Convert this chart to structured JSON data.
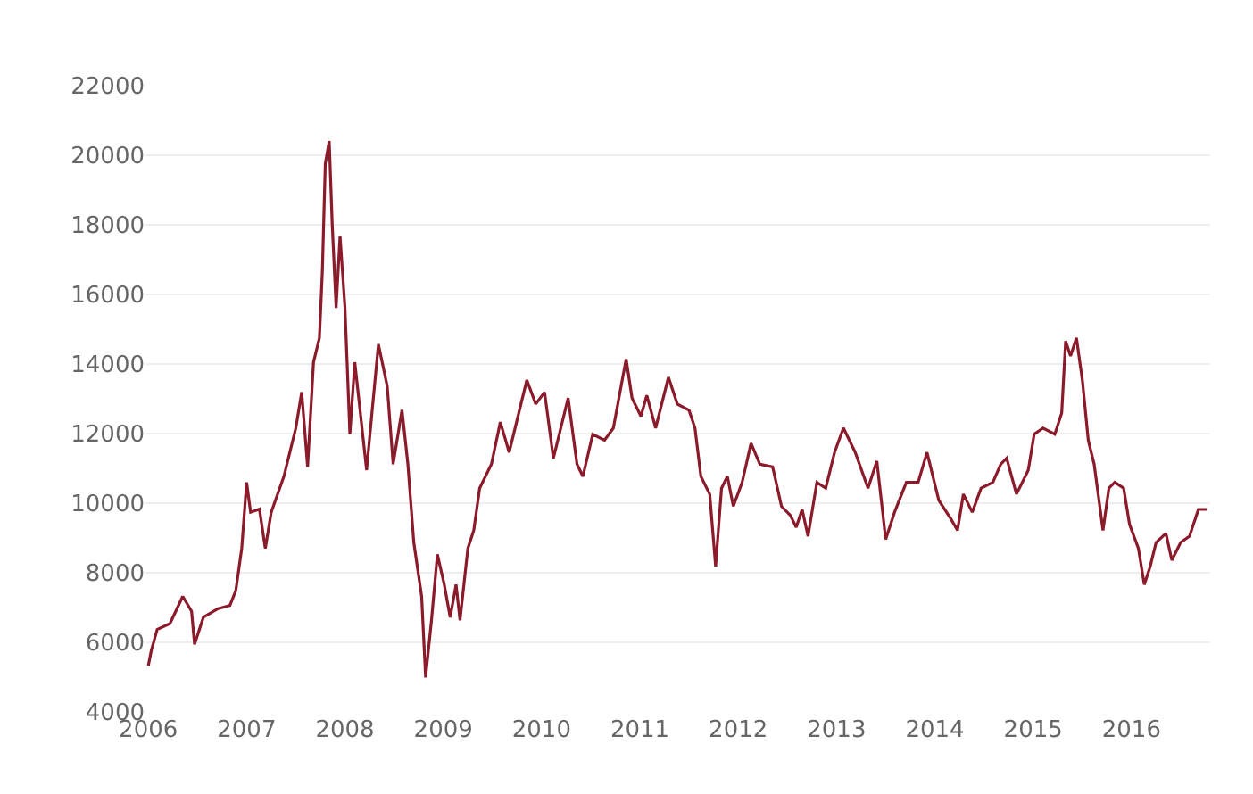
{
  "chart_data": {
    "type": "line",
    "xlim": [
      2005.98,
      2016.8
    ],
    "xticks": [
      2006,
      2007,
      2008,
      2009,
      2010,
      2011,
      2012,
      2013,
      2014,
      2015,
      2016
    ],
    "ylim": [
      4000,
      22000
    ],
    "yticks": [
      4000,
      6000,
      8000,
      10000,
      12000,
      14000,
      16000,
      18000,
      20000,
      22000
    ],
    "grid": "y",
    "marker": "none",
    "line_style": "solid",
    "series": [
      {
        "color": "#8b1a2b",
        "x": [
          2006.0,
          2006.03,
          2006.09,
          2006.22,
          2006.35,
          2006.44,
          2006.47,
          2006.56,
          2006.71,
          2006.83,
          2006.89,
          2006.95,
          2007.0,
          2007.04,
          2007.13,
          2007.19,
          2007.25,
          2007.38,
          2007.5,
          2007.56,
          2007.62,
          2007.68,
          2007.74,
          2007.77,
          2007.8,
          2007.84,
          2007.87,
          2007.91,
          2007.95,
          2008.0,
          2008.05,
          2008.1,
          2008.16,
          2008.22,
          2008.34,
          2008.43,
          2008.49,
          2008.58,
          2008.64,
          2008.7,
          2008.78,
          2008.82,
          2008.88,
          2008.94,
          2009.01,
          2009.07,
          2009.13,
          2009.17,
          2009.25,
          2009.31,
          2009.37,
          2009.49,
          2009.58,
          2009.67,
          2009.76,
          2009.85,
          2009.94,
          2010.03,
          2010.12,
          2010.21,
          2010.27,
          2010.36,
          2010.42,
          2010.52,
          2010.64,
          2010.73,
          2010.82,
          2010.86,
          2010.92,
          2011.01,
          2011.07,
          2011.16,
          2011.29,
          2011.38,
          2011.5,
          2011.56,
          2011.62,
          2011.71,
          2011.77,
          2011.83,
          2011.89,
          2011.95,
          2012.04,
          2012.13,
          2012.22,
          2012.35,
          2012.44,
          2012.53,
          2012.59,
          2012.65,
          2012.71,
          2012.8,
          2012.89,
          2012.98,
          2013.07,
          2013.19,
          2013.32,
          2013.41,
          2013.5,
          2013.59,
          2013.71,
          2013.83,
          2013.92,
          2014.04,
          2014.16,
          2014.23,
          2014.29,
          2014.38,
          2014.47,
          2014.59,
          2014.67,
          2014.73,
          2014.83,
          2014.95,
          2015.01,
          2015.1,
          2015.22,
          2015.29,
          2015.33,
          2015.38,
          2015.44,
          2015.5,
          2015.56,
          2015.62,
          2015.71,
          2015.77,
          2015.83,
          2015.92,
          2015.98,
          2016.07,
          2016.13,
          2016.19,
          2016.25,
          2016.35,
          2016.41,
          2016.5,
          2016.59,
          2016.68,
          2016.77
        ],
        "values": [
          5330,
          5760,
          6370,
          6540,
          7320,
          6890,
          5940,
          6720,
          6970,
          7060,
          7490,
          8700,
          10600,
          9740,
          9830,
          8700,
          9740,
          10780,
          12160,
          13190,
          11040,
          14050,
          14750,
          16650,
          19760,
          20410,
          18030,
          15610,
          17680,
          15610,
          11980,
          14050,
          12500,
          10950,
          14570,
          13360,
          11120,
          12680,
          11120,
          8870,
          7320,
          4990,
          6630,
          8530,
          7660,
          6720,
          7660,
          6630,
          8700,
          9220,
          10430,
          11120,
          12330,
          11460,
          12500,
          13540,
          12850,
          13190,
          11290,
          12330,
          13020,
          11120,
          10770,
          11980,
          11810,
          12160,
          13540,
          14140,
          13020,
          12500,
          13100,
          12160,
          13620,
          12850,
          12670,
          12160,
          10770,
          10260,
          8180,
          10430,
          10770,
          9910,
          10600,
          11720,
          11120,
          11040,
          9910,
          9650,
          9310,
          9820,
          9050,
          10600,
          10430,
          11460,
          12160,
          11460,
          10430,
          11210,
          8960,
          9740,
          10600,
          10600,
          11460,
          10080,
          9560,
          9220,
          10260,
          9740,
          10430,
          10600,
          11120,
          11290,
          10260,
          10950,
          11980,
          12160,
          11980,
          12590,
          14660,
          14230,
          14750,
          13540,
          11810,
          11120,
          9220,
          10430,
          10600,
          10430,
          9390,
          8700,
          7660,
          8180,
          8870,
          9130,
          8360,
          8870,
          9050,
          9820,
          9820
        ]
      }
    ]
  }
}
